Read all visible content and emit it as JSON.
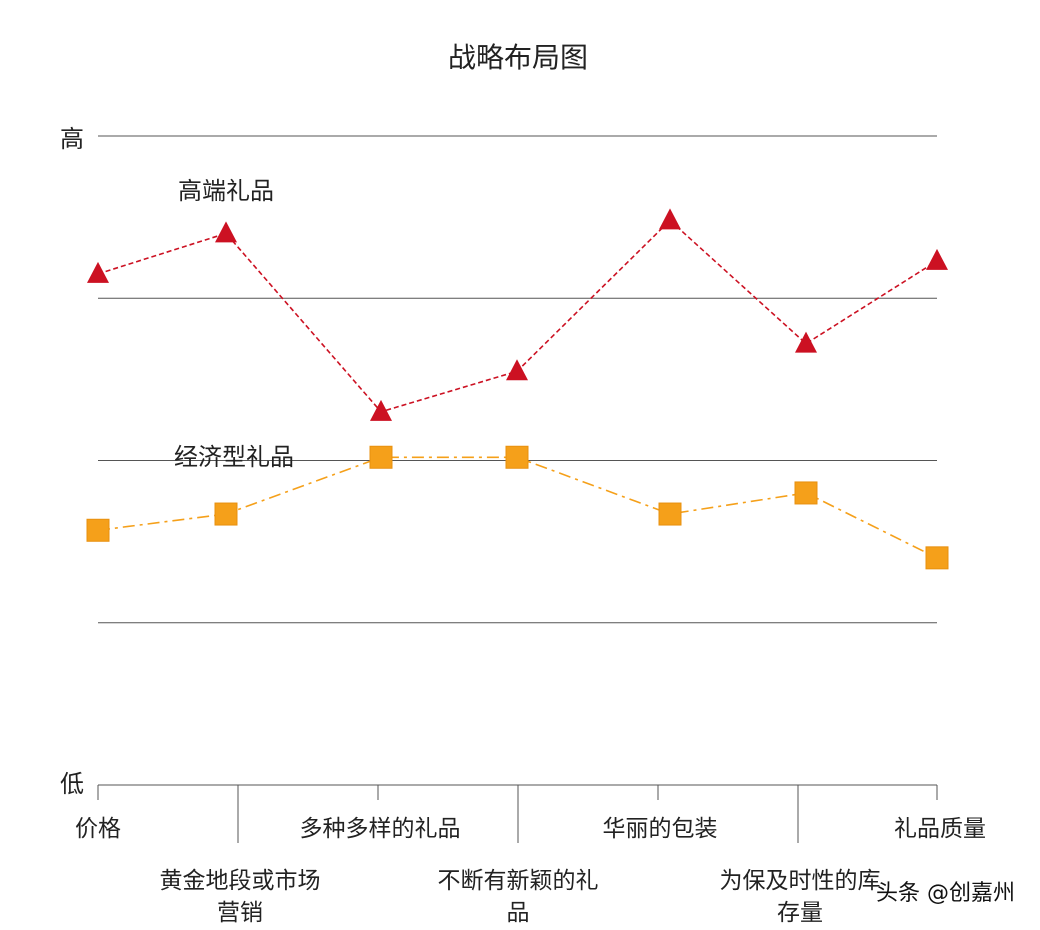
{
  "chart_data": {
    "type": "line",
    "title": "战略布局图",
    "y_axis_labels": {
      "top": "高",
      "bottom": "低"
    },
    "categories": [
      [
        "价格"
      ],
      [
        "黄金地段或市场",
        "营销"
      ],
      [
        "多种多样的礼品"
      ],
      [
        "不断有新颖的礼",
        "品"
      ],
      [
        "华丽的包装"
      ],
      [
        "为保及时性的库",
        "存量"
      ],
      [
        "礼品质量"
      ]
    ],
    "ylim": [
      0,
      4
    ],
    "grid": true,
    "series": [
      {
        "name": "高端礼品",
        "color": "#cc1122",
        "marker": "triangle",
        "line_style": "dashed",
        "values": [
          3.15,
          3.4,
          2.3,
          2.55,
          3.48,
          2.72,
          3.23
        ]
      },
      {
        "name": "经济型礼品",
        "color": "#f5a01a",
        "marker": "square",
        "line_style": "dash-dot",
        "values": [
          1.57,
          1.67,
          2.02,
          2.02,
          1.67,
          1.8,
          1.4
        ]
      }
    ]
  },
  "watermark": "头条 @创嘉州"
}
